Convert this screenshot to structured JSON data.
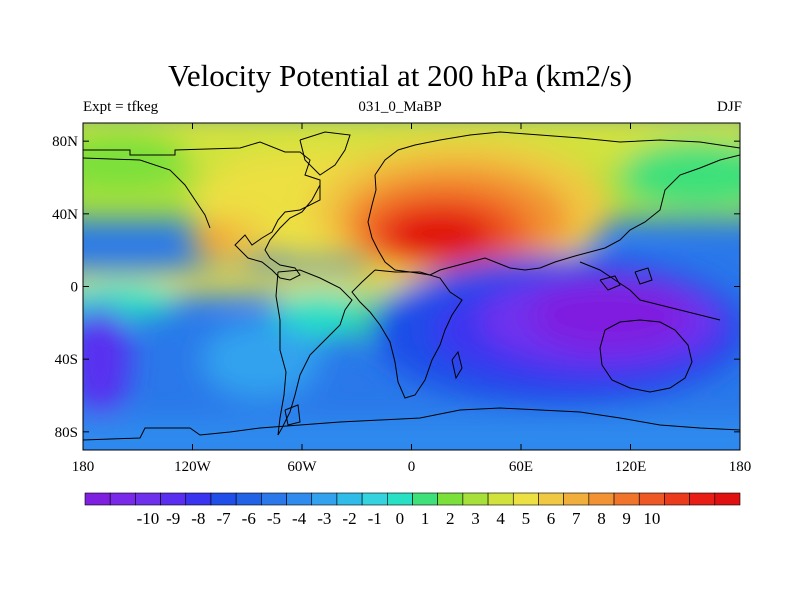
{
  "title": "Velocity Potential at 200 hPa (km2/s)",
  "subtitle_left": "Expt = tfkeg",
  "subtitle_center": "031_0_MaBP",
  "subtitle_right": "DJF",
  "map": {
    "lon_range": [
      -180,
      180
    ],
    "lat_range": [
      -90,
      90
    ],
    "x_ticks": [
      {
        "value": -180,
        "label": "180"
      },
      {
        "value": -120,
        "label": "120W"
      },
      {
        "value": -60,
        "label": "60W"
      },
      {
        "value": 0,
        "label": "0"
      },
      {
        "value": 60,
        "label": "60E"
      },
      {
        "value": 120,
        "label": "120E"
      },
      {
        "value": 180,
        "label": "180"
      }
    ],
    "y_ticks": [
      {
        "value": 80,
        "label": "80N"
      },
      {
        "value": 40,
        "label": "40N"
      },
      {
        "value": 0,
        "label": "0"
      },
      {
        "value": -40,
        "label": "40S"
      },
      {
        "value": -80,
        "label": "80S"
      }
    ]
  },
  "colorbar": {
    "levels": [
      "-10",
      "-9",
      "-8",
      "-7",
      "-6",
      "-5",
      "-4",
      "-3",
      "-2",
      "-1",
      "0",
      "1",
      "2",
      "3",
      "4",
      "5",
      "6",
      "7",
      "8",
      "9",
      "10"
    ],
    "colors": [
      "#7f1fe0",
      "#7a28ea",
      "#6f30ee",
      "#5a2ef0",
      "#3a34f0",
      "#1f4ee8",
      "#2162e6",
      "#2a78ea",
      "#2f8cee",
      "#33a2ee",
      "#2fbce8",
      "#35d2e0",
      "#28e0c4",
      "#3ee07a",
      "#7ce03a",
      "#a8e03a",
      "#d2e23c",
      "#ece042",
      "#f0c842",
      "#f2ae3a",
      "#f29232",
      "#f0742a",
      "#ee5824",
      "#ec3a1c",
      "#e81e16",
      "#e01010"
    ]
  }
}
